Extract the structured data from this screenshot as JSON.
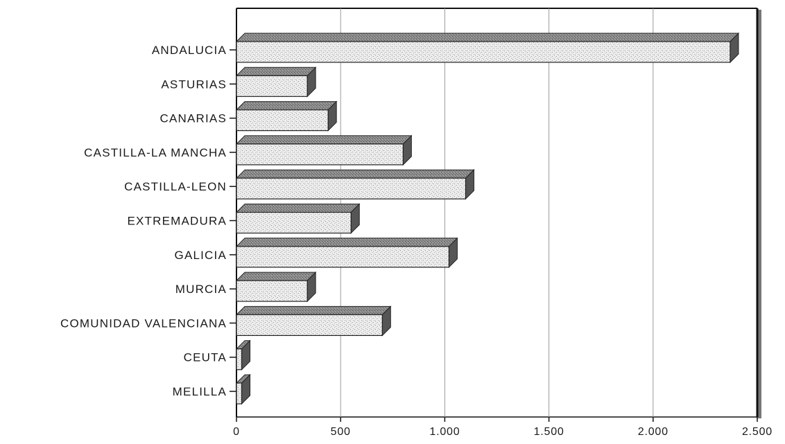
{
  "chart_data": {
    "type": "bar",
    "orientation": "horizontal",
    "style": "3d-bars",
    "title": "",
    "xlabel": "",
    "ylabel": "",
    "xlim": [
      0,
      2500
    ],
    "grid": true,
    "legend": "none",
    "ticks": [
      {
        "value": 0,
        "label": "0"
      },
      {
        "value": 500,
        "label": "500"
      },
      {
        "value": 1000,
        "label": "1.000"
      },
      {
        "value": 1500,
        "label": "1.500"
      },
      {
        "value": 2000,
        "label": "2.000"
      },
      {
        "value": 2500,
        "label": "2.500"
      }
    ],
    "categories": [
      "ANDALUCIA",
      "ASTURIAS",
      "CANARIAS",
      "CASTILLA-LA MANCHA",
      "CASTILLA-LEON",
      "EXTREMADURA",
      "GALICIA",
      "MURCIA",
      "COMUNIDAD VALENCIANA",
      "CEUTA",
      "MELILLA"
    ],
    "values": [
      2370,
      340,
      440,
      800,
      1100,
      550,
      1020,
      340,
      700,
      25,
      25
    ],
    "colors": {
      "bar_front": "#e6e6e6",
      "bar_top": "#8f8f8f",
      "bar_side": "#555555",
      "stroke": "#222222",
      "grid": "#9a9a9a",
      "frame": "#111111",
      "frame_shadow": "#777777"
    }
  }
}
